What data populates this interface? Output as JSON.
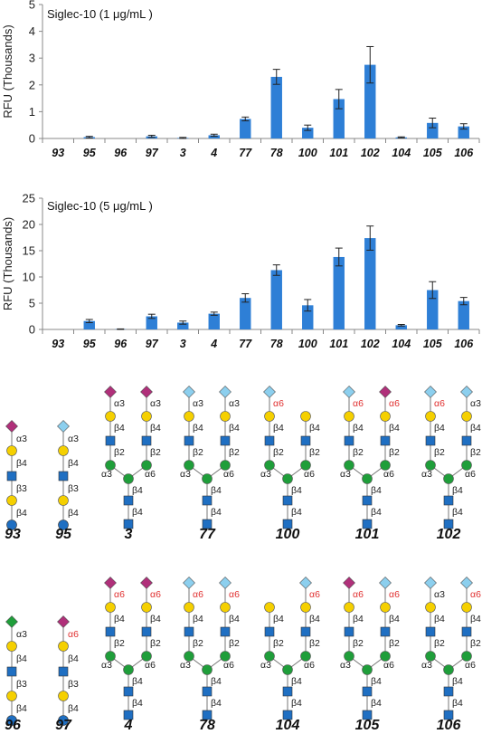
{
  "chart_data": [
    {
      "type": "bar",
      "title": "Siglec-10 (1 μg/mL )",
      "ylabel": "RFU (Thousands)",
      "xlabel": "",
      "ylim": [
        0,
        5
      ],
      "yticks": [
        0,
        1,
        2,
        3,
        4,
        5
      ],
      "categories": [
        "93",
        "95",
        "96",
        "97",
        "3",
        "4",
        "77",
        "78",
        "100",
        "101",
        "102",
        "104",
        "105",
        "106"
      ],
      "values": [
        0.0,
        0.05,
        0.0,
        0.08,
        0.02,
        0.12,
        0.73,
        2.3,
        0.4,
        1.47,
        2.75,
        0.04,
        0.58,
        0.45
      ],
      "errors": [
        0.0,
        0.03,
        0.0,
        0.04,
        0.02,
        0.04,
        0.07,
        0.28,
        0.1,
        0.36,
        0.68,
        0.02,
        0.18,
        0.1
      ],
      "color": "#2e7fd6"
    },
    {
      "type": "bar",
      "title": "Siglec-10 (5 μg/mL )",
      "ylabel": "RFU (Thousands)",
      "xlabel": "",
      "ylim": [
        0,
        25
      ],
      "yticks": [
        0,
        5,
        10,
        15,
        20,
        25
      ],
      "categories": [
        "93",
        "95",
        "96",
        "97",
        "3",
        "4",
        "77",
        "78",
        "100",
        "101",
        "102",
        "104",
        "105",
        "106"
      ],
      "values": [
        0.0,
        1.6,
        0.05,
        2.5,
        1.3,
        3.0,
        6.0,
        11.3,
        4.6,
        13.8,
        17.4,
        0.8,
        7.5,
        5.4
      ],
      "errors": [
        0.0,
        0.3,
        0.05,
        0.4,
        0.3,
        0.3,
        0.8,
        1.0,
        1.1,
        1.7,
        2.3,
        0.15,
        1.6,
        0.7
      ],
      "color": "#2e7fd6"
    }
  ],
  "glycan_structures": {
    "row1_labels": [
      "93",
      "95",
      "3",
      "77",
      "100",
      "101",
      "102"
    ],
    "row2_labels": [
      "96",
      "97",
      "4",
      "78",
      "104",
      "105",
      "106"
    ],
    "linkages": {
      "a3": "α3",
      "a6": "α6",
      "b4": "β4",
      "b3": "β3",
      "b2": "β2"
    },
    "colors": {
      "galactose": "#f5d000",
      "glcnac": "#1f6fc2",
      "mannose": "#1f9e3a",
      "neu5ac": "#b0307a",
      "neu5gc": "#8ccfee",
      "fucose_like_green": "#1f9e3a",
      "linkage_red": "#e03030"
    }
  }
}
